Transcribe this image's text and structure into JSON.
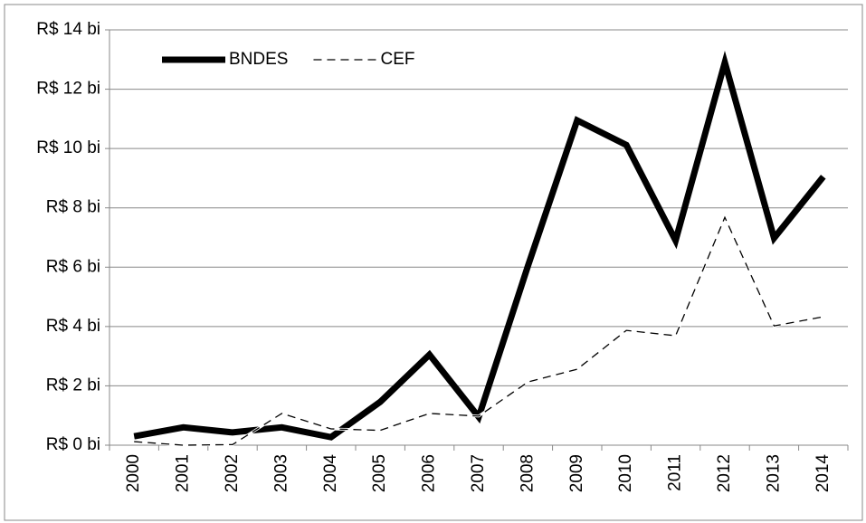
{
  "chart_data": {
    "type": "line",
    "categories": [
      "2000",
      "2001",
      "2002",
      "2003",
      "2004",
      "2005",
      "2006",
      "2007",
      "2008",
      "2009",
      "2010",
      "2011",
      "2012",
      "2013",
      "2014"
    ],
    "series": [
      {
        "name": "BNDES",
        "color": "#000000",
        "dash": "solid",
        "values": [
          0.3,
          0.6,
          0.43,
          0.6,
          0.27,
          1.46,
          3.05,
          0.95,
          6.04,
          10.95,
          10.12,
          6.9,
          12.9,
          6.98,
          9.05
        ]
      },
      {
        "name": "CEF",
        "color": "#000000",
        "dash": "dashed",
        "values": [
          0.12,
          0,
          0.02,
          1.07,
          0.55,
          0.5,
          1.07,
          0.98,
          2.13,
          2.56,
          3.87,
          3.69,
          7.68,
          4.02,
          4.33
        ]
      }
    ],
    "ylim": [
      0,
      14
    ],
    "yticks": [
      {
        "value": 0,
        "label": "R$ 0 bi"
      },
      {
        "value": 2,
        "label": "R$ 2 bi"
      },
      {
        "value": 4,
        "label": "R$ 4 bi"
      },
      {
        "value": 6,
        "label": "R$ 6 bi"
      },
      {
        "value": 8,
        "label": "R$ 8 bi"
      },
      {
        "value": 10,
        "label": "R$ 10 bi"
      },
      {
        "value": 12,
        "label": "R$ 12 bi"
      },
      {
        "value": 14,
        "label": "R$ 14 bi"
      }
    ],
    "grid": true,
    "legend": "top-left"
  }
}
